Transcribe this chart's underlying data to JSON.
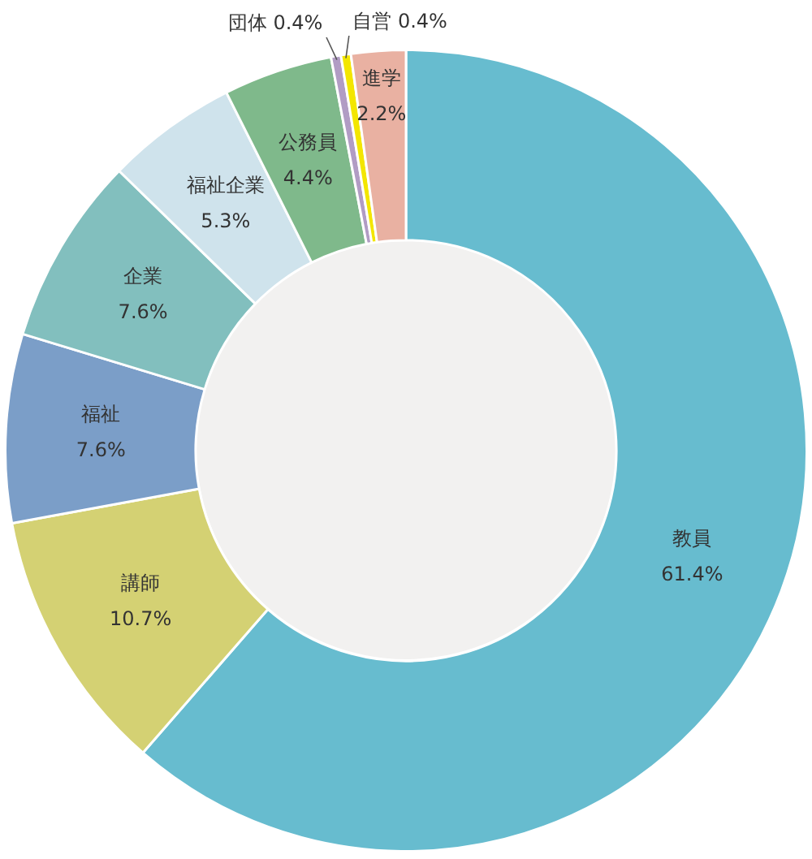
{
  "chart_data": {
    "type": "donut",
    "categories": [
      "教員",
      "講師",
      "福祉",
      "企業",
      "福祉企業",
      "公務員",
      "団体",
      "自営",
      "進学"
    ],
    "values": [
      61.4,
      10.7,
      7.6,
      7.6,
      5.3,
      4.4,
      0.4,
      0.4,
      2.2
    ],
    "colors": [
      "#67bccf",
      "#d4d173",
      "#7b9ec8",
      "#82bfbe",
      "#cfe3ec",
      "#7fb98b",
      "#b19cc4",
      "#f3e600",
      "#e9b1a2"
    ],
    "value_labels": [
      "61.4%",
      "10.7%",
      "7.6%",
      "7.6%",
      "5.3%",
      "4.4%",
      "0.4%",
      "0.4%",
      "2.2%"
    ],
    "legend": false
  }
}
